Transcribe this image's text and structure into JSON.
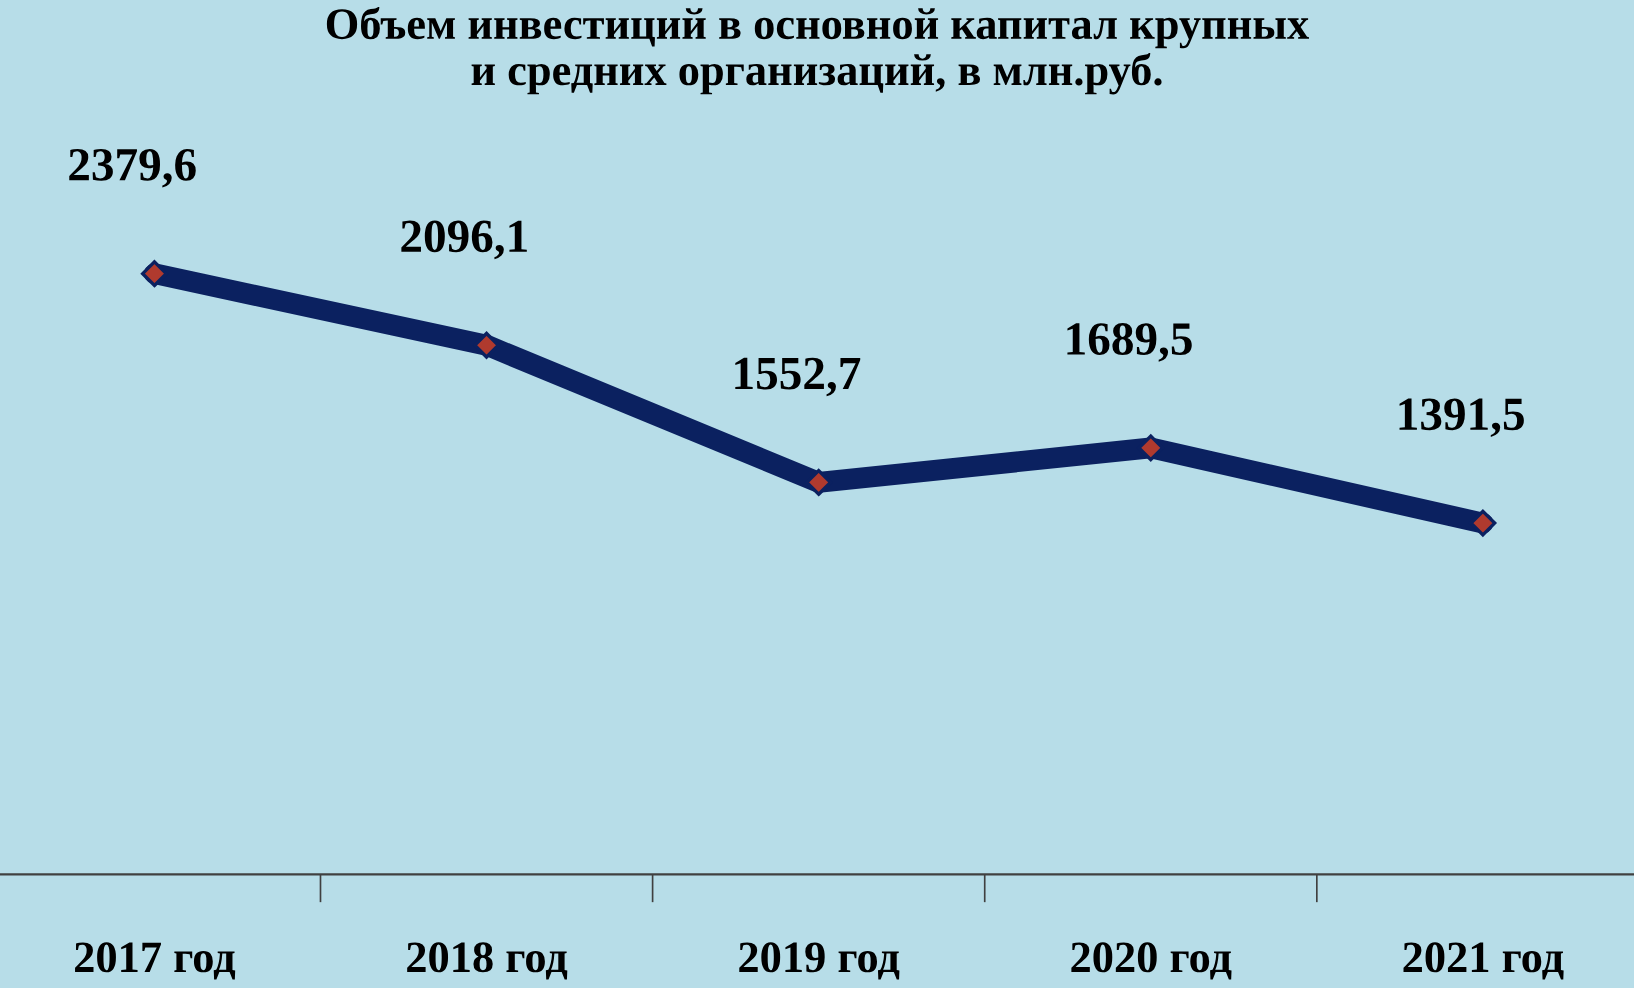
{
  "chart_data": {
    "type": "line",
    "title": "Объем инвестиций в основной капитал крупных\nи средних организаций, в млн.руб.",
    "categories": [
      "2017 год",
      "2018 год",
      "2019 год",
      "2020 год",
      "2021 год"
    ],
    "series": [
      {
        "color": "#0b2160",
        "values": [
          2379.6,
          2096.1,
          1552.7,
          1689.5,
          1391.5
        ],
        "value_labels": [
          "2379,6",
          "2096,1",
          "1552,7",
          "1689,5",
          "1391,5"
        ]
      }
    ],
    "marker": "diamond",
    "line_style": "solid"
  }
}
